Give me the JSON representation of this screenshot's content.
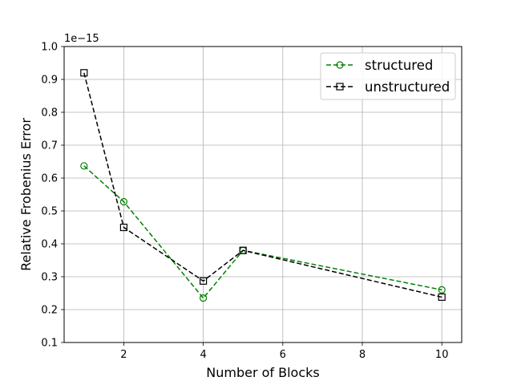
{
  "chart_data": {
    "type": "line",
    "xlabel": "Number of Blocks",
    "ylabel": "Relative Frobenius Error",
    "y_offset_label": "1e−15",
    "xlim": [
      0.5,
      10.5
    ],
    "ylim": [
      0.1,
      1.0
    ],
    "x_ticks": [
      2,
      4,
      6,
      8,
      10
    ],
    "x_tick_labels": [
      "2",
      "4",
      "6",
      "8",
      "10"
    ],
    "y_ticks": [
      0.1,
      0.2,
      0.3,
      0.4,
      0.5,
      0.6,
      0.7,
      0.8,
      0.9,
      1.0
    ],
    "y_tick_labels": [
      "0.1",
      "0.2",
      "0.3",
      "0.4",
      "0.5",
      "0.6",
      "0.7",
      "0.8",
      "0.9",
      "1.0"
    ],
    "grid": true,
    "legend_position": "top-right",
    "series": [
      {
        "name": "structured",
        "color": "#008000",
        "marker": "circle",
        "line_style": "dashed",
        "x": [
          1,
          2,
          4,
          5,
          10
        ],
        "y": [
          0.637,
          0.528,
          0.235,
          0.38,
          0.26
        ]
      },
      {
        "name": "unstructured",
        "color": "#000000",
        "marker": "square",
        "line_style": "dashed",
        "x": [
          1,
          2,
          4,
          5,
          10
        ],
        "y": [
          0.92,
          0.45,
          0.287,
          0.38,
          0.238
        ]
      }
    ]
  }
}
